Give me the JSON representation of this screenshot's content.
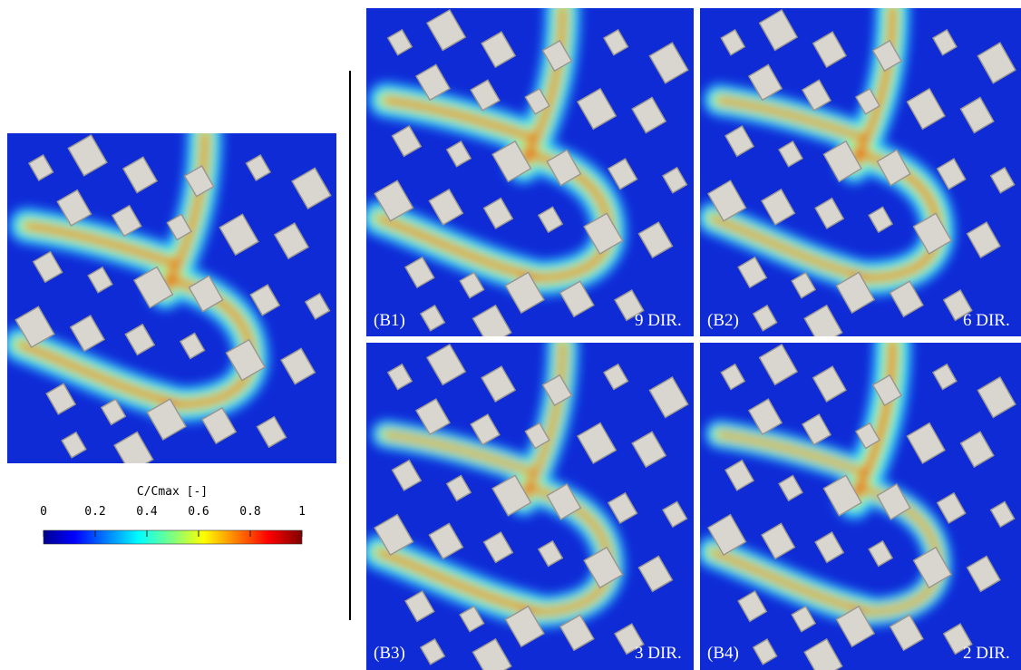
{
  "colorbar": {
    "title": "C/Cmax [-]",
    "lim": [
      0,
      1
    ],
    "ticks": [
      0,
      0.2,
      0.4,
      0.6,
      0.8,
      1
    ]
  },
  "panels": [
    {
      "label": "(B1)",
      "note": "9 DIR."
    },
    {
      "label": "(B2)",
      "note": "6 DIR."
    },
    {
      "label": "(B3)",
      "note": "3 DIR."
    },
    {
      "label": "(B4)",
      "note": "2 DIR."
    }
  ]
}
